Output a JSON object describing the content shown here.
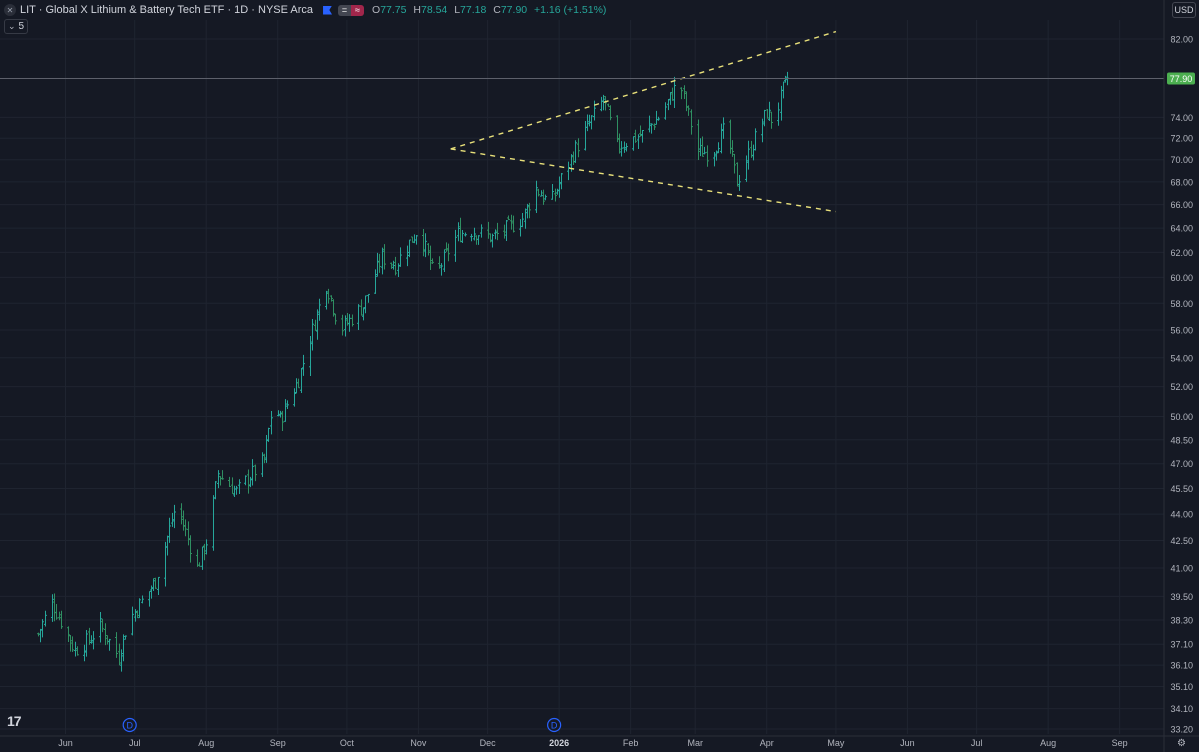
{
  "header": {
    "title": "LIT · Global X Lithium & Battery Tech ETF · 1D · NYSE Arca",
    "pill_a": "=",
    "pill_b": "≈",
    "o_label": "O",
    "o_val": "77.75",
    "h_label": "H",
    "h_val": "78.54",
    "l_label": "L",
    "l_val": "77.18",
    "c_label": "C",
    "c_val": "77.90",
    "change": "+1.16 (+1.51%)"
  },
  "indicator_count": "5",
  "currency": "USD",
  "last_price_label": "77.90",
  "dividend_marker": "D",
  "logo_text": "17",
  "colors": {
    "background": "#151924",
    "bar": "#26a69a",
    "bar_alt": "#2f8f62",
    "trendline": "#e8e07a",
    "price_badge": "#4caf50",
    "grid": "#1f2430"
  },
  "chart_data": {
    "type": "ohlc_bar",
    "symbol": "LIT",
    "interval": "1D",
    "yscale": "log",
    "ylim": [
      33.2,
      84.0
    ],
    "y_ticks": [
      "82.00",
      "77.90",
      "74.00",
      "72.00",
      "70.00",
      "68.00",
      "66.00",
      "64.00",
      "62.00",
      "60.00",
      "58.00",
      "56.00",
      "54.00",
      "52.00",
      "50.00",
      "48.50",
      "47.00",
      "45.50",
      "44.00",
      "42.50",
      "41.00",
      "39.50",
      "38.30",
      "37.10",
      "36.10",
      "35.10",
      "34.10",
      "33.20"
    ],
    "x_ticks": [
      "Jun",
      "Jul",
      "Aug",
      "Sep",
      "Oct",
      "Nov",
      "Dec",
      "2026",
      "Feb",
      "Mar",
      "Apr",
      "May",
      "Jun",
      "Jul",
      "Aug",
      "Sep"
    ],
    "dividend_markers": [
      "Jul",
      "Jan"
    ],
    "last_price": 77.9,
    "price_path": [
      [
        "2025-05-20",
        37.6
      ],
      [
        "2025-05-26",
        39.2
      ],
      [
        "2025-06-05",
        36.8
      ],
      [
        "2025-06-12",
        37.4
      ],
      [
        "2025-06-16",
        38.0
      ],
      [
        "2025-06-24",
        36.5
      ],
      [
        "2025-06-28",
        38.2
      ],
      [
        "2025-07-10",
        40.3
      ],
      [
        "2025-07-19",
        44.6
      ],
      [
        "2025-07-28",
        41.0
      ],
      [
        "2025-08-02",
        42.8
      ],
      [
        "2025-08-06",
        46.4
      ],
      [
        "2025-08-14",
        45.3
      ],
      [
        "2025-08-26",
        47.2
      ],
      [
        "2025-08-30",
        51.0
      ],
      [
        "2025-09-02",
        49.8
      ],
      [
        "2025-09-10",
        52.5
      ],
      [
        "2025-09-22",
        59.5
      ],
      [
        "2025-09-28",
        56.0
      ],
      [
        "2025-10-08",
        57.8
      ],
      [
        "2025-10-16",
        61.6
      ],
      [
        "2025-10-22",
        61.0
      ],
      [
        "2025-11-01",
        64.0
      ],
      [
        "2025-11-08",
        60.0
      ],
      [
        "2025-11-18",
        63.5
      ],
      [
        "2025-11-24",
        63.8
      ],
      [
        "2025-12-03",
        63.2
      ],
      [
        "2025-12-16",
        64.8
      ],
      [
        "2025-12-22",
        67.4
      ],
      [
        "2025-12-28",
        66.0
      ],
      [
        "2026-01-08",
        71.0
      ],
      [
        "2026-01-20",
        75.8
      ],
      [
        "2026-01-26",
        71.2
      ],
      [
        "2026-02-06",
        72.4
      ],
      [
        "2026-02-14",
        74.2
      ],
      [
        "2026-02-22",
        77.6
      ],
      [
        "2026-03-02",
        70.8
      ],
      [
        "2026-03-08",
        70.6
      ],
      [
        "2026-03-14",
        73.0
      ],
      [
        "2026-03-19",
        68.0
      ],
      [
        "2026-03-26",
        71.5
      ],
      [
        "2026-04-01",
        74.5
      ],
      [
        "2026-04-04",
        73.5
      ],
      [
        "2026-04-08",
        76.7
      ],
      [
        "2026-04-10",
        77.9
      ]
    ],
    "trendlines": [
      {
        "style": "dashed",
        "from": [
          "2025-11-15",
          71.0
        ],
        "to": [
          "2026-05-01",
          82.8
        ]
      },
      {
        "style": "dashed",
        "from": [
          "2025-11-15",
          71.0
        ],
        "to": [
          "2026-05-01",
          65.4
        ]
      }
    ]
  }
}
